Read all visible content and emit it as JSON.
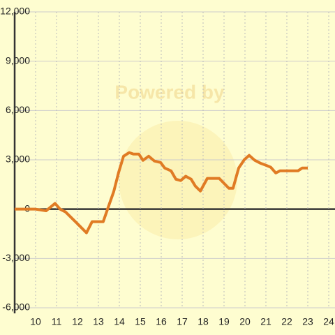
{
  "chart_data": {
    "type": "line",
    "watermark": "Powered by",
    "x": [
      9,
      10,
      10.5,
      10.93,
      11.17,
      11.43,
      11.97,
      12.43,
      12.7,
      13.23,
      13.53,
      13.73,
      13.97,
      14.2,
      14.47,
      14.67,
      14.93,
      15.13,
      15.4,
      15.67,
      15.97,
      16.17,
      16.47,
      16.7,
      16.93,
      17.17,
      17.43,
      17.63,
      17.87,
      18.2,
      18.77,
      18.97,
      19.23,
      19.43,
      19.7,
      19.97,
      20.2,
      20.47,
      20.73,
      21,
      21.23,
      21.47,
      21.67,
      21.93,
      22.53,
      22.73,
      23
    ],
    "series": [
      {
        "color": "#e07b24",
        "values": [
          0,
          0,
          -100,
          350,
          0,
          -170,
          -850,
          -1440,
          -760,
          -760,
          340,
          1060,
          2250,
          3220,
          3440,
          3350,
          3350,
          2970,
          3220,
          2930,
          2840,
          2500,
          2330,
          1820,
          1740,
          2000,
          1820,
          1400,
          1100,
          1870,
          1870,
          1610,
          1270,
          1270,
          2500,
          3010,
          3270,
          2970,
          2800,
          2670,
          2550,
          2200,
          2330,
          2330,
          2330,
          2500,
          2500
        ]
      }
    ],
    "xlim": [
      9,
      24.3
    ],
    "xticks": [
      10,
      11,
      12,
      13,
      14,
      15,
      16,
      17,
      18,
      19,
      20,
      21,
      22,
      23,
      24
    ],
    "ylim": [
      -6000,
      12000
    ],
    "yticks": [
      {
        "value": -6000,
        "label": "-6,000"
      },
      {
        "value": -3000,
        "label": "-3,000"
      },
      0,
      {
        "value": 3000,
        "label": "3,000"
      },
      {
        "value": 6000,
        "label": "6,000"
      },
      {
        "value": 9000,
        "label": "9,000"
      },
      {
        "value": 12000,
        "label": "12,000"
      }
    ],
    "grid": true
  }
}
